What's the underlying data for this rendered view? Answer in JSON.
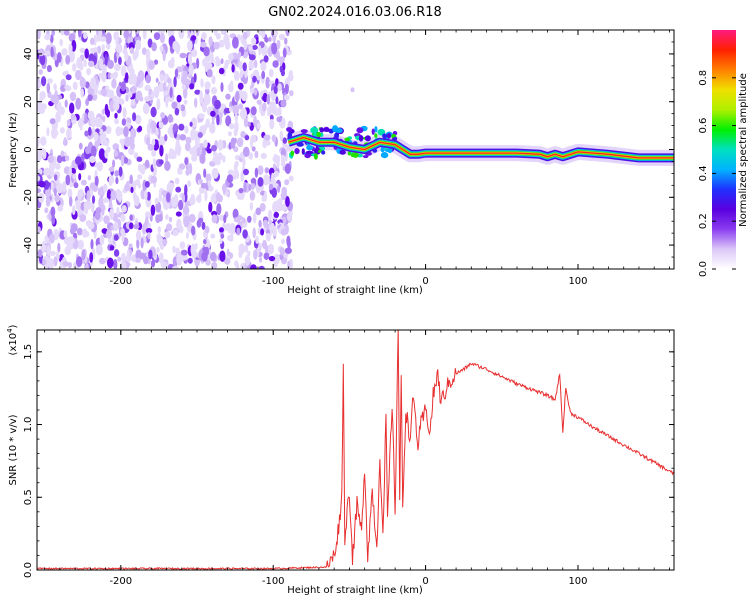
{
  "figure": {
    "title": "GN02.2024.016.03.06.R18"
  },
  "chart_data": [
    {
      "type": "heatmap",
      "title": "GN02.2024.016.03.06.R18",
      "xlabel": "Height of straight line (km)",
      "ylabel": "Frequency (Hz)",
      "xlim": [
        -255,
        163
      ],
      "ylim": [
        -50,
        50
      ],
      "xticks": [
        -200,
        -100,
        0,
        100
      ],
      "yticks": [
        -40,
        -20,
        0,
        20,
        40
      ],
      "grid": false,
      "colorbar": {
        "label": "Normalized spectral amplitude",
        "ticks": [
          "0.0",
          "0.2",
          "0.4",
          "0.6",
          "0.8"
        ],
        "range": [
          0,
          1
        ],
        "colors": [
          "#ffffff",
          "#dcc8f8",
          "#8a3cf0",
          "#5a00e0",
          "#2030ff",
          "#00b4ff",
          "#00e0c0",
          "#00f000",
          "#b0f000",
          "#f0e000",
          "#ff8000",
          "#ff2000",
          "#ff1a80"
        ]
      },
      "noise_region": {
        "x": [
          -255,
          -88
        ],
        "y": [
          -50,
          50
        ]
      },
      "trace": {
        "x": [
          -90,
          -80,
          -70,
          -60,
          -50,
          -40,
          -30,
          -20,
          -15,
          -10,
          -5,
          0,
          20,
          40,
          60,
          75,
          80,
          85,
          90,
          100,
          120,
          140,
          163
        ],
        "y": [
          3,
          5,
          3,
          3,
          1,
          0,
          3,
          2,
          0,
          -2,
          -2,
          -1.5,
          -1.5,
          -1.5,
          -1.5,
          -2,
          -3,
          -2,
          -3,
          -1,
          -2,
          -3.5,
          -3.5
        ]
      }
    },
    {
      "type": "line",
      "xlabel": "Height of straight line (km)",
      "ylabel": "SNR (10 * v/v)",
      "multiplier": "(x10",
      "multiplier_exp": "4",
      "multiplier_close": ")",
      "xlim": [
        -255,
        163
      ],
      "ylim": [
        0,
        1.65
      ],
      "xticks": [
        -200,
        -100,
        0,
        100
      ],
      "yticks": [
        "0.0",
        "0.5",
        "1.0",
        "1.5"
      ],
      "grid": false,
      "series": [
        {
          "color": "#e83030",
          "x": [
            -255,
            -100,
            -65,
            -60,
            -57,
            -55,
            -54,
            -53,
            -52,
            -50,
            -48,
            -45,
            -42,
            -40,
            -38,
            -35,
            -32,
            -30,
            -28,
            -26,
            -25,
            -22,
            -20,
            -18,
            -17,
            -16,
            -15,
            -13,
            -10,
            -8,
            -5,
            -3,
            0,
            3,
            5,
            8,
            10,
            15,
            20,
            25,
            30,
            35,
            40,
            50,
            60,
            70,
            80,
            85,
            88,
            90,
            92,
            95,
            100,
            110,
            120,
            130,
            140,
            150,
            163
          ],
          "y": [
            0.01,
            0.01,
            0.02,
            0.1,
            0.3,
            0.5,
            1.38,
            0.2,
            0.35,
            0.55,
            0.08,
            0.45,
            0.25,
            0.72,
            0.1,
            0.55,
            0.15,
            0.8,
            0.2,
            1.05,
            0.35,
            1.15,
            0.4,
            1.68,
            0.5,
            1.3,
            0.45,
            1.1,
            0.9,
            1.2,
            0.85,
            1.0,
            1.1,
            0.95,
            1.2,
            1.35,
            1.15,
            1.28,
            1.35,
            1.38,
            1.42,
            1.4,
            1.38,
            1.33,
            1.28,
            1.24,
            1.2,
            1.17,
            1.35,
            0.95,
            1.25,
            1.08,
            1.05,
            0.98,
            0.92,
            0.86,
            0.8,
            0.74,
            0.66
          ]
        }
      ]
    }
  ]
}
